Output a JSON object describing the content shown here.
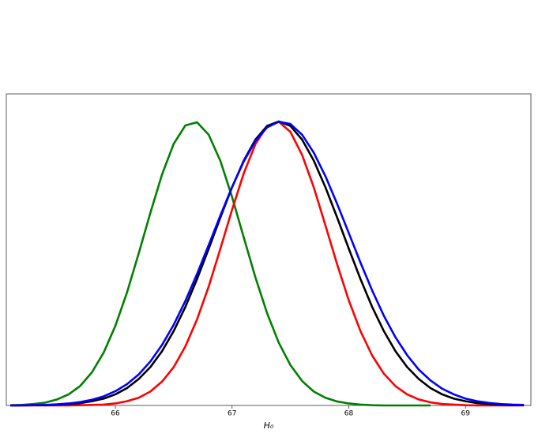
{
  "chart_data": {
    "type": "line",
    "x_label": "H₀",
    "x": [
      65.1,
      65.2,
      65.3,
      65.4,
      65.5,
      65.6,
      65.7,
      65.8,
      65.9,
      66.0,
      66.1,
      66.2,
      66.3,
      66.4,
      66.5,
      66.6,
      66.7,
      66.8,
      66.9,
      67.0,
      67.1,
      67.2,
      67.3,
      67.4,
      67.5,
      67.6,
      67.7,
      67.8,
      67.9,
      68.0,
      68.1,
      68.2,
      68.3,
      68.4,
      68.5,
      68.6,
      68.7,
      68.8,
      68.9,
      69.0,
      69.1,
      69.2,
      69.3,
      69.4,
      69.5
    ],
    "series": [
      {
        "color": "#008000",
        "values": [
          0.001,
          0.002,
          0.005,
          0.01,
          0.021,
          0.039,
          0.069,
          0.117,
          0.186,
          0.28,
          0.398,
          0.535,
          0.678,
          0.813,
          0.921,
          0.986,
          0.997,
          0.953,
          0.861,
          0.734,
          0.592,
          0.451,
          0.325,
          0.221,
          0.142,
          0.086,
          0.049,
          0.027,
          0.014,
          0.007,
          0.003,
          0.001,
          0,
          0,
          0,
          0,
          0,
          null,
          null,
          null,
          null,
          null,
          null,
          null,
          null
        ]
      },
      {
        "color": "#ff0000",
        "values": [
          0,
          0,
          0,
          0,
          0,
          0,
          0.001,
          0.002,
          0.003,
          0.007,
          0.015,
          0.027,
          0.049,
          0.084,
          0.135,
          0.208,
          0.303,
          0.419,
          0.552,
          0.689,
          0.817,
          0.92,
          0.984,
          0.999,
          0.963,
          0.882,
          0.768,
          0.634,
          0.497,
          0.37,
          0.262,
          0.176,
          0.112,
          0.068,
          0.039,
          0.021,
          0.011,
          0.005,
          0.003,
          0.001,
          0,
          0,
          0,
          0,
          0
        ]
      },
      {
        "color": "#000000",
        "values": [
          0,
          0,
          0.001,
          0.001,
          0.003,
          0.005,
          0.008,
          0.015,
          0.024,
          0.039,
          0.061,
          0.093,
          0.135,
          0.191,
          0.262,
          0.347,
          0.445,
          0.552,
          0.662,
          0.768,
          0.862,
          0.936,
          0.984,
          1.0,
          0.984,
          0.936,
          0.862,
          0.768,
          0.662,
          0.552,
          0.445,
          0.347,
          0.262,
          0.191,
          0.135,
          0.093,
          0.061,
          0.039,
          0.024,
          0.015,
          0.008,
          0.005,
          0.003,
          0.001,
          0.001
        ]
      },
      {
        "color": "#0000ff",
        "values": [
          0,
          0.001,
          0.001,
          0.002,
          0.004,
          0.007,
          0.012,
          0.02,
          0.032,
          0.05,
          0.075,
          0.109,
          0.155,
          0.213,
          0.284,
          0.368,
          0.463,
          0.565,
          0.669,
          0.769,
          0.859,
          0.931,
          0.979,
          0.999,
          0.991,
          0.953,
          0.89,
          0.807,
          0.71,
          0.607,
          0.503,
          0.405,
          0.316,
          0.24,
          0.177,
          0.126,
          0.088,
          0.059,
          0.039,
          0.024,
          0.015,
          0.009,
          0.005,
          0.003,
          0.002
        ]
      }
    ],
    "xlim": [
      65.066,
      69.56
    ],
    "ylim": [
      0,
      1.097
    ],
    "xticks": [
      66,
      67,
      68,
      69
    ]
  }
}
